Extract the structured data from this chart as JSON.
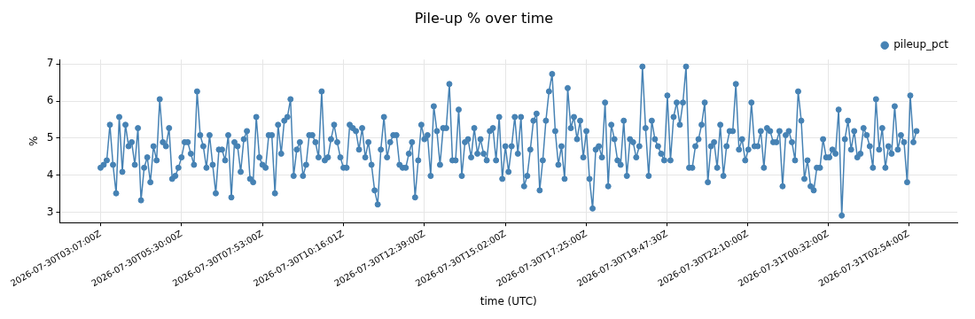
{
  "chart_data": {
    "type": "line",
    "title": "Pile-up % over time",
    "xlabel": "time (UTC)",
    "ylabel": "%",
    "xlim": [
      "2026-07-30T01:55",
      "2026-07-31T04:20"
    ],
    "xticks": [
      {
        "value": "2026-07-30T03:07",
        "label": "2026-07-30T03:07:00Z"
      },
      {
        "value": "2026-07-30T05:30",
        "label": "2026-07-30T05:30:00Z"
      },
      {
        "value": "2026-07-30T07:53",
        "label": "2026-07-30T07:53:00Z"
      },
      {
        "value": "2026-07-30T10:16",
        "label": "2026-07-30T10:16:01Z"
      },
      {
        "value": "2026-07-30T12:39",
        "label": "2026-07-30T12:39:00Z"
      },
      {
        "value": "2026-07-30T15:02",
        "label": "2026-07-30T15:02:00Z"
      },
      {
        "value": "2026-07-30T17:25",
        "label": "2026-07-30T17:25:00Z"
      },
      {
        "value": "2026-07-30T19:47:30",
        "label": "2026-07-30T19:47:30Z"
      },
      {
        "value": "2026-07-30T22:10",
        "label": "2026-07-30T22:10:00Z"
      },
      {
        "value": "2026-07-31T00:32",
        "label": "2026-07-31T00:32:00Z"
      },
      {
        "value": "2026-07-31T02:54",
        "label": "2026-07-31T02:54:00Z"
      }
    ],
    "ylim": [
      2.72,
      7.12
    ],
    "yticks": [
      3,
      4,
      5,
      6,
      7
    ],
    "grid": true,
    "legend": "top right",
    "marker": "circle",
    "line_style": "solid",
    "x": [
      "2026-07-30T03:07:00",
      "2026-07-30T03:12:30",
      "2026-07-30T03:18:00",
      "2026-07-30T03:23:30",
      "2026-07-30T03:29:00",
      "2026-07-30T03:34:30",
      "2026-07-30T03:40:00",
      "2026-07-30T03:45:30",
      "2026-07-30T03:51:00",
      "2026-07-30T03:56:30",
      "2026-07-30T04:02:00",
      "2026-07-30T04:07:30",
      "2026-07-30T04:13:00",
      "2026-07-30T04:18:30",
      "2026-07-30T04:24:00",
      "2026-07-30T04:29:30",
      "2026-07-30T04:35:00",
      "2026-07-30T04:40:30",
      "2026-07-30T04:46:00",
      "2026-07-30T04:51:30",
      "2026-07-30T04:57:00",
      "2026-07-30T05:02:30",
      "2026-07-30T05:08:00",
      "2026-07-30T05:13:30",
      "2026-07-30T05:19:00",
      "2026-07-30T05:24:30",
      "2026-07-30T05:30:00",
      "2026-07-30T05:35:30",
      "2026-07-30T05:41:00",
      "2026-07-30T05:46:30",
      "2026-07-30T05:52:00",
      "2026-07-30T05:57:30",
      "2026-07-30T06:03:00",
      "2026-07-30T06:08:30",
      "2026-07-30T06:14:00",
      "2026-07-30T06:19:30",
      "2026-07-30T06:25:00",
      "2026-07-30T06:30:30",
      "2026-07-30T06:36:00",
      "2026-07-30T06:41:30",
      "2026-07-30T06:47:00",
      "2026-07-30T06:52:30",
      "2026-07-30T06:58:00",
      "2026-07-30T07:03:30",
      "2026-07-30T07:09:00",
      "2026-07-30T07:14:30",
      "2026-07-30T07:20:00",
      "2026-07-30T07:25:30",
      "2026-07-30T07:31:00",
      "2026-07-30T07:36:30",
      "2026-07-30T07:42:00",
      "2026-07-30T07:47:30",
      "2026-07-30T07:53:00",
      "2026-07-30T07:58:30",
      "2026-07-30T08:04:00",
      "2026-07-30T08:09:30",
      "2026-07-30T08:15:00",
      "2026-07-30T08:20:30",
      "2026-07-30T08:26:00",
      "2026-07-30T08:31:30",
      "2026-07-30T08:37:00",
      "2026-07-30T08:42:30",
      "2026-07-30T08:48:00",
      "2026-07-30T08:53:30",
      "2026-07-30T08:59:00",
      "2026-07-30T09:04:30",
      "2026-07-30T09:10:00",
      "2026-07-30T09:15:30",
      "2026-07-30T09:21:00",
      "2026-07-30T09:26:30",
      "2026-07-30T09:32:00",
      "2026-07-30T09:37:30",
      "2026-07-30T09:43:00",
      "2026-07-30T09:48:30",
      "2026-07-30T09:54:00",
      "2026-07-30T09:59:30",
      "2026-07-30T10:05:00",
      "2026-07-30T10:10:30",
      "2026-07-30T10:16:00",
      "2026-07-30T10:21:30",
      "2026-07-30T10:27:00",
      "2026-07-30T10:32:30",
      "2026-07-30T10:38:00",
      "2026-07-30T10:43:30",
      "2026-07-30T10:49:00",
      "2026-07-30T10:54:30",
      "2026-07-30T11:00:00",
      "2026-07-30T11:05:30",
      "2026-07-30T11:11:00",
      "2026-07-30T11:16:30",
      "2026-07-30T11:22:00",
      "2026-07-30T11:27:30",
      "2026-07-30T11:33:00",
      "2026-07-30T11:38:30",
      "2026-07-30T11:44:00",
      "2026-07-30T11:49:30",
      "2026-07-30T11:55:00",
      "2026-07-30T12:00:30",
      "2026-07-30T12:06:00",
      "2026-07-30T12:11:30",
      "2026-07-30T12:17:00",
      "2026-07-30T12:22:30",
      "2026-07-30T12:28:00",
      "2026-07-30T12:33:30",
      "2026-07-30T12:39:00",
      "2026-07-30T12:44:30",
      "2026-07-30T12:50:00",
      "2026-07-30T12:55:30",
      "2026-07-30T13:01:00",
      "2026-07-30T13:06:30",
      "2026-07-30T13:12:00",
      "2026-07-30T13:17:30",
      "2026-07-30T13:23:00",
      "2026-07-30T13:28:30",
      "2026-07-30T13:34:00",
      "2026-07-30T13:39:30",
      "2026-07-30T13:45:00",
      "2026-07-30T13:50:30",
      "2026-07-30T13:56:00",
      "2026-07-30T14:01:30",
      "2026-07-30T14:07:00",
      "2026-07-30T14:12:30",
      "2026-07-30T14:18:00",
      "2026-07-30T14:23:30",
      "2026-07-30T14:29:00",
      "2026-07-30T14:34:30",
      "2026-07-30T14:40:00",
      "2026-07-30T14:45:30",
      "2026-07-30T14:51:00",
      "2026-07-30T14:56:30",
      "2026-07-30T15:02:00",
      "2026-07-30T15:07:30",
      "2026-07-30T15:13:00",
      "2026-07-30T15:18:30",
      "2026-07-30T15:24:00",
      "2026-07-30T15:29:30",
      "2026-07-30T15:35:00",
      "2026-07-30T15:40:30",
      "2026-07-30T15:46:00",
      "2026-07-30T15:51:30",
      "2026-07-30T15:57:00",
      "2026-07-30T16:02:30",
      "2026-07-30T16:08:00",
      "2026-07-30T16:13:30",
      "2026-07-30T16:19:00",
      "2026-07-30T16:24:30",
      "2026-07-30T16:30:00",
      "2026-07-30T16:35:30",
      "2026-07-30T16:41:00",
      "2026-07-30T16:46:30",
      "2026-07-30T16:52:00",
      "2026-07-30T16:57:30",
      "2026-07-30T17:03:00",
      "2026-07-30T17:08:30",
      "2026-07-30T17:14:00",
      "2026-07-30T17:19:30",
      "2026-07-30T17:25:00",
      "2026-07-30T17:30:30",
      "2026-07-30T17:36:00",
      "2026-07-30T17:41:30",
      "2026-07-30T17:47:00",
      "2026-07-30T17:52:30",
      "2026-07-30T17:58:00",
      "2026-07-30T18:03:30",
      "2026-07-30T18:09:00",
      "2026-07-30T18:14:30",
      "2026-07-30T18:20:00",
      "2026-07-30T18:25:30",
      "2026-07-30T18:31:00",
      "2026-07-30T18:36:30",
      "2026-07-30T18:42:00",
      "2026-07-30T18:47:30",
      "2026-07-30T18:53:00",
      "2026-07-30T18:58:30",
      "2026-07-30T19:04:00",
      "2026-07-30T19:09:30",
      "2026-07-30T19:15:00",
      "2026-07-30T19:20:30",
      "2026-07-30T19:26:00",
      "2026-07-30T19:31:30",
      "2026-07-30T19:37:00",
      "2026-07-30T19:42:30",
      "2026-07-30T19:48:00",
      "2026-07-30T19:53:30",
      "2026-07-30T19:59:00",
      "2026-07-30T20:04:30",
      "2026-07-30T20:10:00",
      "2026-07-30T20:15:30",
      "2026-07-30T20:21:00",
      "2026-07-30T20:26:30",
      "2026-07-30T20:32:00",
      "2026-07-30T20:37:30",
      "2026-07-30T20:43:00",
      "2026-07-30T20:48:30",
      "2026-07-30T20:54:00",
      "2026-07-30T20:59:30",
      "2026-07-30T21:05:00",
      "2026-07-30T21:10:30",
      "2026-07-30T21:16:00",
      "2026-07-30T21:21:30",
      "2026-07-30T21:27:00",
      "2026-07-30T21:32:30",
      "2026-07-30T21:38:00",
      "2026-07-30T21:43:30",
      "2026-07-30T21:49:00",
      "2026-07-30T21:54:30",
      "2026-07-30T22:00:00",
      "2026-07-30T22:05:30",
      "2026-07-30T22:11:00",
      "2026-07-30T22:16:30",
      "2026-07-30T22:22:00",
      "2026-07-30T22:27:30",
      "2026-07-30T22:33:00",
      "2026-07-30T22:38:30",
      "2026-07-30T22:44:00",
      "2026-07-30T22:49:30",
      "2026-07-30T22:55:00",
      "2026-07-30T23:00:30",
      "2026-07-30T23:06:00",
      "2026-07-30T23:11:30",
      "2026-07-30T23:17:00",
      "2026-07-30T23:22:30",
      "2026-07-30T23:28:00",
      "2026-07-30T23:33:30",
      "2026-07-30T23:39:00",
      "2026-07-30T23:44:30",
      "2026-07-30T23:50:00",
      "2026-07-30T23:55:30",
      "2026-07-31T00:01:00",
      "2026-07-31T00:06:30",
      "2026-07-31T00:12:00",
      "2026-07-31T00:17:30",
      "2026-07-31T00:23:00",
      "2026-07-31T00:28:30",
      "2026-07-31T00:34:00",
      "2026-07-31T00:39:30",
      "2026-07-31T00:45:00",
      "2026-07-31T00:50:30",
      "2026-07-31T00:56:00",
      "2026-07-31T01:01:30",
      "2026-07-31T01:07:00",
      "2026-07-31T01:12:30",
      "2026-07-31T01:18:00",
      "2026-07-31T01:23:30",
      "2026-07-31T01:29:00",
      "2026-07-31T01:34:30",
      "2026-07-31T01:40:00",
      "2026-07-31T01:45:30",
      "2026-07-31T01:51:00",
      "2026-07-31T01:56:30",
      "2026-07-31T02:02:00",
      "2026-07-31T02:07:30",
      "2026-07-31T02:13:00",
      "2026-07-31T02:18:30",
      "2026-07-31T02:24:00",
      "2026-07-31T02:29:30",
      "2026-07-31T02:35:00",
      "2026-07-31T02:40:30",
      "2026-07-31T02:46:00",
      "2026-07-31T02:51:30",
      "2026-07-31T02:57:00",
      "2026-07-31T03:02:30",
      "2026-07-31T03:08:00"
    ],
    "series": [
      {
        "name": "pileup_pct",
        "color": "#4682b4",
        "values": [
          4.2,
          4.28,
          4.4,
          5.36,
          4.28,
          3.51,
          5.57,
          4.09,
          5.36,
          4.78,
          4.89,
          4.28,
          5.27,
          3.32,
          4.2,
          4.48,
          3.81,
          4.78,
          4.4,
          6.05,
          4.89,
          4.78,
          5.27,
          3.9,
          3.98,
          4.2,
          4.48,
          4.89,
          4.89,
          4.58,
          4.28,
          6.26,
          5.08,
          4.78,
          4.2,
          5.08,
          4.28,
          3.51,
          4.69,
          4.69,
          4.4,
          5.08,
          3.4,
          4.89,
          4.78,
          4.09,
          4.97,
          5.19,
          3.9,
          3.81,
          5.57,
          4.48,
          4.28,
          4.2,
          5.08,
          5.08,
          3.51,
          5.36,
          4.58,
          5.47,
          5.57,
          6.05,
          3.98,
          4.69,
          4.89,
          3.98,
          4.28,
          5.08,
          5.08,
          4.89,
          4.48,
          6.26,
          4.4,
          4.48,
          4.97,
          5.36,
          4.89,
          4.48,
          4.2,
          4.2,
          5.36,
          5.27,
          5.19,
          4.69,
          5.27,
          4.48,
          4.89,
          4.28,
          3.59,
          3.21,
          4.69,
          5.57,
          4.48,
          4.89,
          5.08,
          5.08,
          4.28,
          4.2,
          4.2,
          4.58,
          4.89,
          3.4,
          4.4,
          5.36,
          4.97,
          5.08,
          3.98,
          5.86,
          5.19,
          4.28,
          5.27,
          5.27,
          6.46,
          4.4,
          4.4,
          5.77,
          3.98,
          4.89,
          4.97,
          4.48,
          5.27,
          4.58,
          4.97,
          4.58,
          4.4,
          5.19,
          5.27,
          4.4,
          5.57,
          3.9,
          4.78,
          4.09,
          4.78,
          5.57,
          4.58,
          5.57,
          3.7,
          3.98,
          4.69,
          5.47,
          5.66,
          3.59,
          4.4,
          5.47,
          6.26,
          6.73,
          5.19,
          4.28,
          4.78,
          3.9,
          6.35,
          5.27,
          5.57,
          4.97,
          5.47,
          4.48,
          5.19,
          3.9,
          3.1,
          4.69,
          4.78,
          4.48,
          5.96,
          3.7,
          5.36,
          4.97,
          4.4,
          4.28,
          5.47,
          3.98,
          4.97,
          4.89,
          4.48,
          4.78,
          6.93,
          5.27,
          3.98,
          5.47,
          4.97,
          4.78,
          4.58,
          4.4,
          6.15,
          4.4,
          5.57,
          5.96,
          5.36,
          5.96,
          6.93,
          4.2,
          4.2,
          4.78,
          4.97,
          5.36,
          5.96,
          3.81,
          4.78,
          4.89,
          4.2,
          5.36,
          3.98,
          4.78,
          5.19,
          5.19,
          6.46,
          4.69,
          4.97,
          4.4,
          4.69,
          5.96,
          4.78,
          4.78,
          5.19,
          4.2,
          5.27,
          5.19,
          4.89,
          4.89,
          5.19,
          3.7,
          5.08,
          5.19,
          4.89,
          4.4,
          6.26,
          5.47,
          3.9,
          4.4,
          3.7,
          3.59,
          4.2,
          4.2,
          4.97,
          4.48,
          4.48,
          4.69,
          4.58,
          5.77,
          2.91,
          4.97,
          5.47,
          4.69,
          5.19,
          4.48,
          4.58,
          5.27,
          5.08,
          4.78,
          4.2,
          6.05,
          4.69,
          5.27,
          4.2,
          4.78,
          4.58,
          5.86,
          4.69,
          5.08,
          4.89,
          3.81,
          6.15,
          4.89,
          5.19
        ]
      }
    ]
  }
}
